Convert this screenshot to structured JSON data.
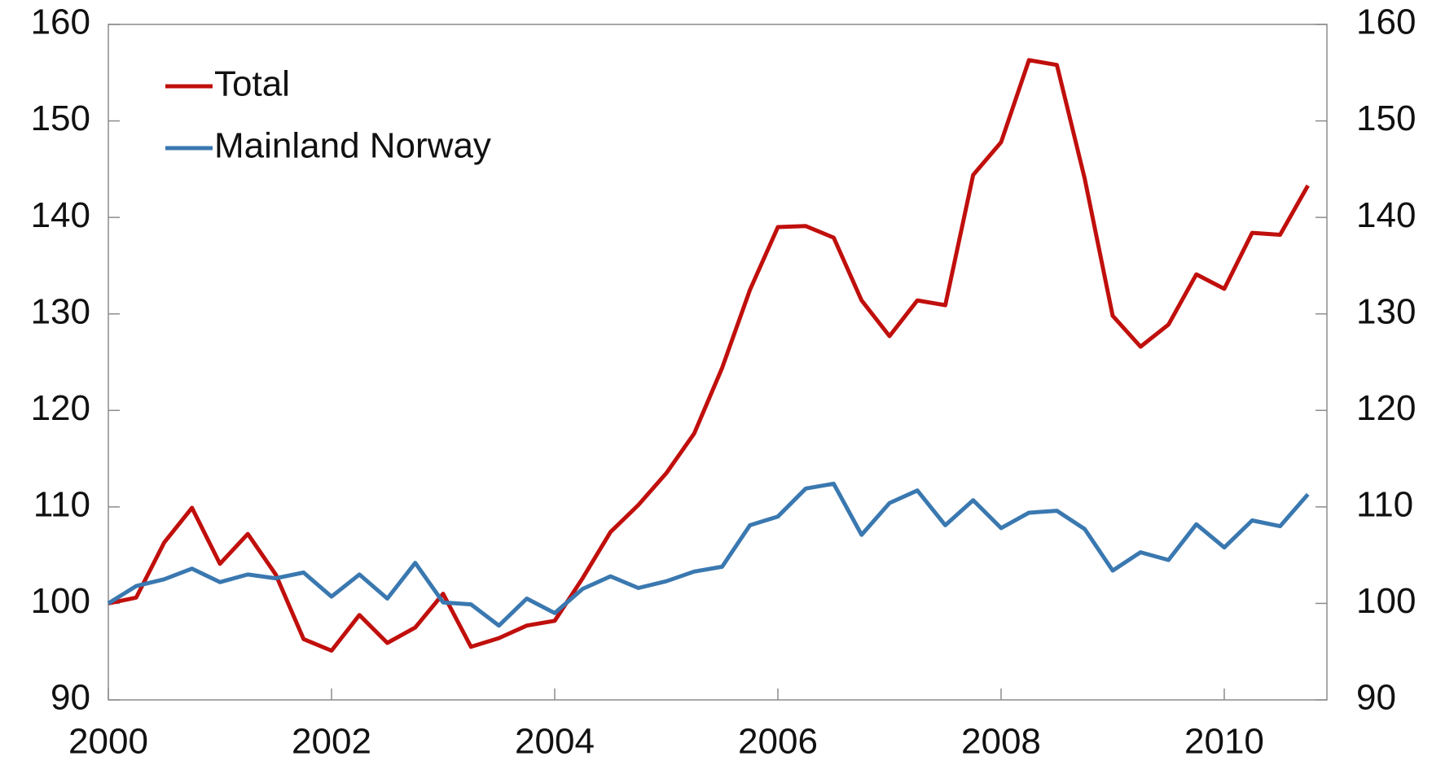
{
  "chart_data": {
    "type": "line",
    "x": [
      2000,
      2000.25,
      2000.5,
      2000.75,
      2001,
      2001.25,
      2001.5,
      2001.75,
      2002,
      2002.25,
      2002.5,
      2002.75,
      2003,
      2003.25,
      2003.5,
      2003.75,
      2004,
      2004.25,
      2004.5,
      2004.75,
      2005,
      2005.25,
      2005.5,
      2005.75,
      2006,
      2006.25,
      2006.5,
      2006.75,
      2007,
      2007.25,
      2007.5,
      2007.75,
      2008,
      2008.25,
      2008.5,
      2008.75,
      2009,
      2009.25,
      2009.5,
      2009.75,
      2010,
      2010.25,
      2010.5,
      2010.75
    ],
    "series": [
      {
        "name": "Total",
        "color": "#c00f0c",
        "values": [
          100,
          100.6,
          106.3,
          109.9,
          104.1,
          107.2,
          103,
          96.3,
          95.1,
          98.8,
          95.9,
          97.5,
          101,
          95.5,
          96.4,
          97.7,
          98.2,
          102.6,
          107.4,
          110.2,
          113.5,
          117.6,
          124.4,
          132.5,
          139,
          139.1,
          137.9,
          131.4,
          127.7,
          131.4,
          130.9,
          144.4,
          147.8,
          156.3,
          155.8,
          144,
          129.8,
          126.6,
          128.9,
          134.1,
          132.6,
          138.4,
          138.2,
          143.3
        ]
      },
      {
        "name": "Mainland Norway",
        "color": "#3a78b0",
        "values": [
          100,
          101.8,
          102.5,
          103.6,
          102.2,
          103,
          102.6,
          103.2,
          100.7,
          103,
          100.5,
          104.2,
          100.1,
          99.9,
          97.7,
          100.5,
          99,
          101.5,
          102.8,
          101.6,
          102.3,
          103.3,
          103.8,
          108.1,
          109,
          111.9,
          112.4,
          107.1,
          110.4,
          111.7,
          108.1,
          110.7,
          107.8,
          109.4,
          109.6,
          107.7,
          103.4,
          105.3,
          104.5,
          108.2,
          105.8,
          108.6,
          108,
          111.3
        ]
      }
    ],
    "xlim": [
      2000,
      2010.92
    ],
    "xticks": [
      2000,
      2002,
      2004,
      2006,
      2008,
      2010
    ],
    "ylim": [
      90,
      160
    ],
    "yticks": [
      90,
      100,
      110,
      120,
      130,
      140,
      150,
      160
    ],
    "y2lim": [
      90,
      160
    ],
    "y2ticks": [
      90,
      100,
      110,
      120,
      130,
      140,
      150,
      160
    ],
    "legend": "upper-left"
  }
}
